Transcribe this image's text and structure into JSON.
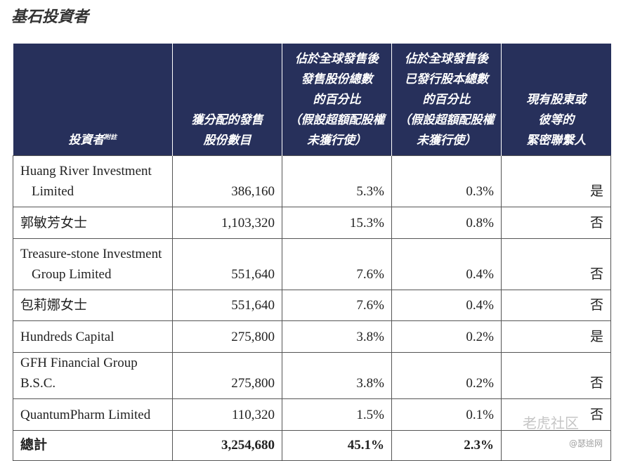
{
  "header": {
    "title": "基石投資者"
  },
  "table": {
    "columns": [
      {
        "lines": [
          "投資者"
        ],
        "note": "附註"
      },
      {
        "lines": [
          "獲分配的發售",
          "股份數目"
        ]
      },
      {
        "lines": [
          "佔於全球發售後",
          "發售股份總數",
          "的百分比",
          "（假設超額配股權",
          "未獲行使）"
        ]
      },
      {
        "lines": [
          "佔於全球發售後",
          "已發行股本總數",
          "的百分比",
          "（假設超額配股權",
          "未獲行使）"
        ]
      },
      {
        "lines": [
          "現有股東或",
          "彼等的",
          "緊密聯繫人"
        ]
      }
    ],
    "rows": [
      [
        [
          "Huang River Investment",
          "Limited"
        ],
        "386,160",
        "5.3%",
        "0.3%",
        "是"
      ],
      [
        [
          "郭敏芳女士"
        ],
        "1,103,320",
        "15.3%",
        "0.8%",
        "否"
      ],
      [
        [
          "Treasure-stone Investment",
          "Group Limited"
        ],
        "551,640",
        "7.6%",
        "0.4%",
        "否"
      ],
      [
        [
          "包莉娜女士"
        ],
        "551,640",
        "7.6%",
        "0.4%",
        "否"
      ],
      [
        [
          "Hundreds Capital"
        ],
        "275,800",
        "3.8%",
        "0.2%",
        "是"
      ],
      [
        [
          "GFH Financial Group B.S.C."
        ],
        "275,800",
        "3.8%",
        "0.2%",
        "否"
      ],
      [
        [
          "QuantumPharm Limited"
        ],
        "110,320",
        "1.5%",
        "0.1%",
        "否"
      ]
    ],
    "total": [
      "總計",
      "3,254,680",
      "45.1%",
      "2.3%"
    ]
  },
  "watermark": {
    "brand": "老虎社区",
    "source": "@瑟途网"
  }
}
